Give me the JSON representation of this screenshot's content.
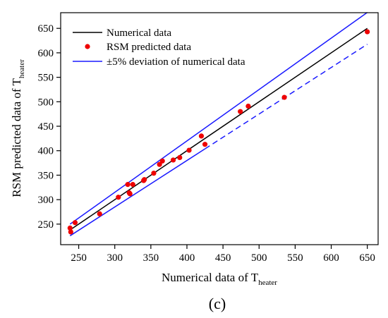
{
  "chart_data": {
    "type": "scatter",
    "xlabel": "Numerical data of T",
    "xlabel_sub": "heater",
    "ylabel": "RSM predicted data  of T",
    "ylabel_sub": "heater",
    "xlim": [
      225,
      665
    ],
    "ylim": [
      208,
      682
    ],
    "xticks": [
      250,
      300,
      350,
      400,
      450,
      500,
      550,
      600,
      650
    ],
    "yticks": [
      250,
      300,
      350,
      400,
      450,
      500,
      550,
      600,
      650
    ],
    "legend_position": "top-left",
    "panel_label": "(c)",
    "series": [
      {
        "name": "Numerical data",
        "kind": "line",
        "color": "#000000",
        "points": [
          [
            240,
            240
          ],
          [
            650,
            650
          ]
        ]
      },
      {
        "name": "RSM predicted data",
        "kind": "scatter",
        "color": "#ee0000",
        "points": [
          [
            238,
            242
          ],
          [
            239,
            234
          ],
          [
            245,
            253
          ],
          [
            279,
            271
          ],
          [
            305,
            305
          ],
          [
            318,
            331
          ],
          [
            320,
            314
          ],
          [
            321,
            312
          ],
          [
            325,
            331
          ],
          [
            340,
            339
          ],
          [
            341,
            341
          ],
          [
            354,
            354
          ],
          [
            362,
            372
          ],
          [
            366,
            379
          ],
          [
            381,
            381
          ],
          [
            390,
            386
          ],
          [
            403,
            401
          ],
          [
            420,
            430
          ],
          [
            425,
            413
          ],
          [
            474,
            480
          ],
          [
            485,
            491
          ],
          [
            535,
            509
          ],
          [
            650,
            643
          ]
        ]
      },
      {
        "name": "±5% deviation of numerical data",
        "kind": "band",
        "color": "#1a1aff",
        "upper": [
          [
            238,
            249.9
          ],
          [
            650,
            682.5
          ]
        ],
        "lower_solid": [
          [
            238,
            226.1
          ],
          [
            425,
            403.75
          ]
        ],
        "lower_dashed": [
          [
            425,
            403.75
          ],
          [
            650,
            617.5
          ]
        ]
      }
    ]
  }
}
